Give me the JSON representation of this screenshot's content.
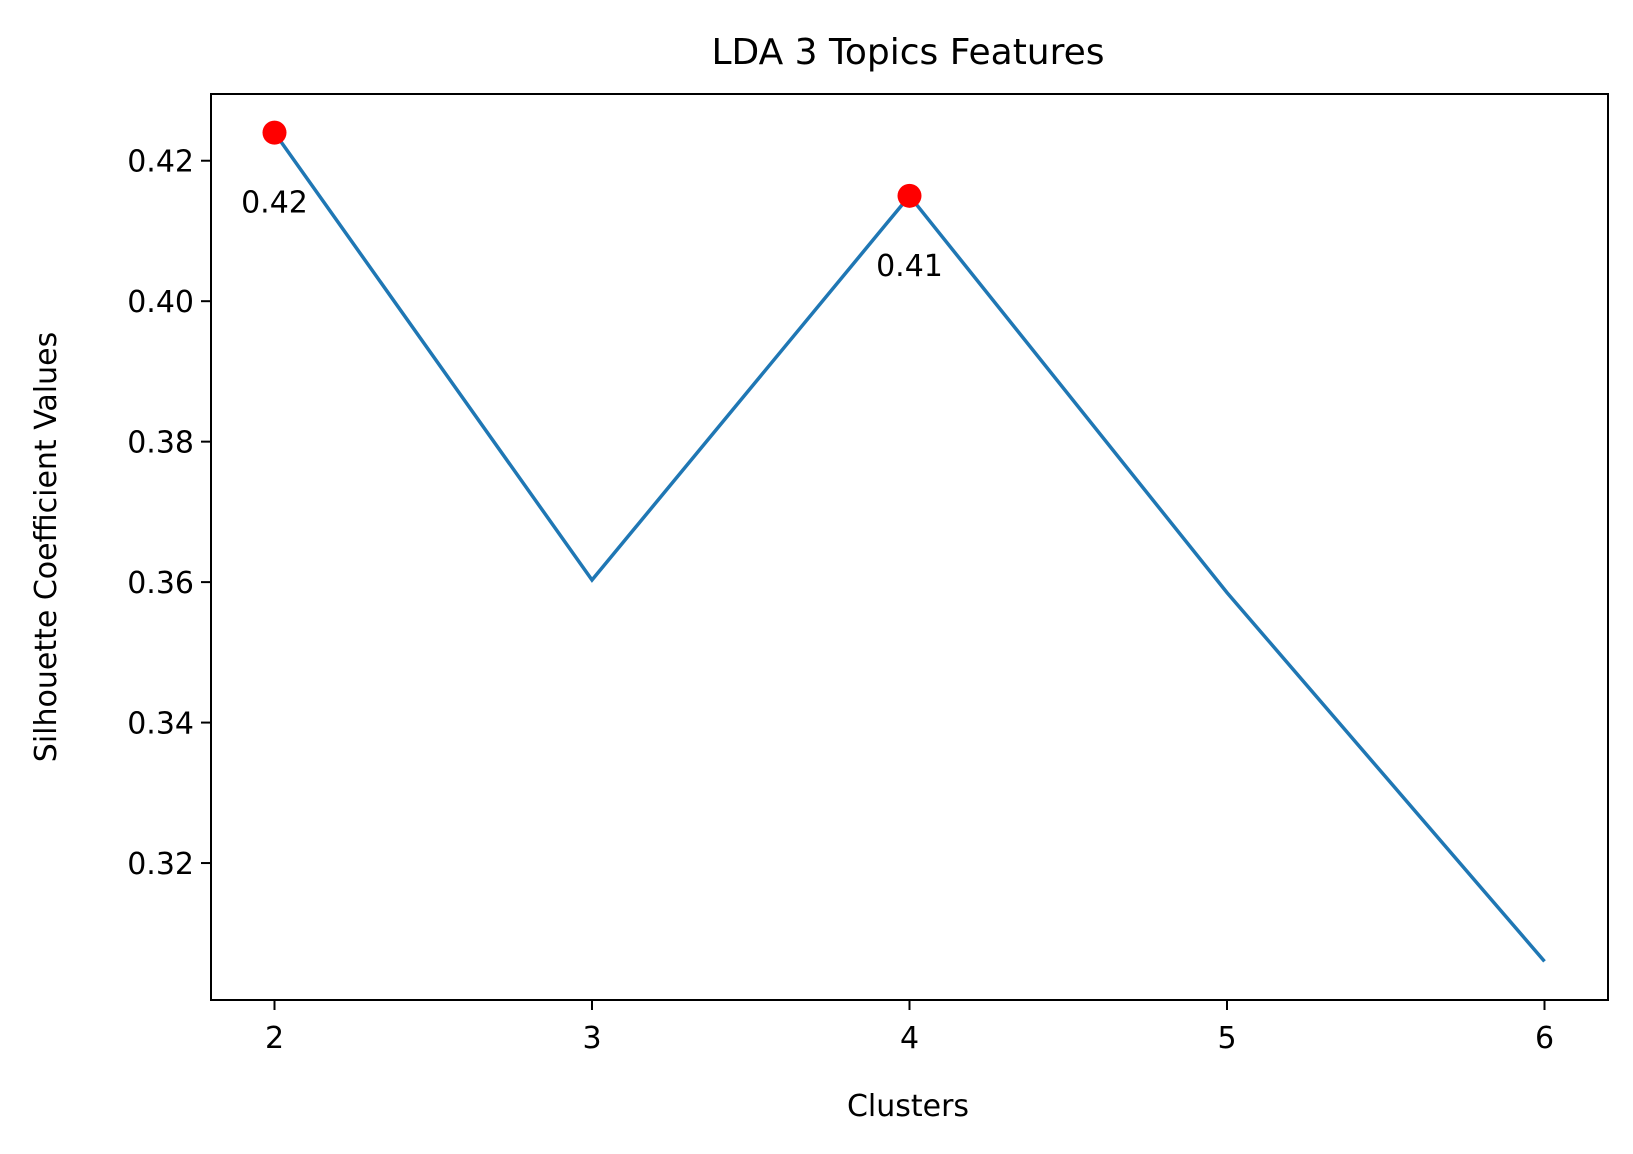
{
  "chart_data": {
    "type": "line",
    "title": "LDA 3 Topics Features",
    "xlabel": "Clusters",
    "ylabel": "Silhouette Coefficient Values",
    "x": [
      2,
      3,
      4,
      5,
      6
    ],
    "series": [
      {
        "values": [
          0.424,
          0.3603,
          0.415,
          0.3585,
          0.306
        ]
      }
    ],
    "highlighted_points": [
      {
        "x": 2,
        "y": 0.424,
        "label": "0.42"
      },
      {
        "x": 4,
        "y": 0.415,
        "label": "0.41"
      }
    ],
    "xlim": [
      1.8,
      6.2
    ],
    "ylim": [
      0.3005,
      0.4295
    ],
    "xticks": [
      2,
      3,
      4,
      5,
      6
    ],
    "xtick_labels": [
      "2",
      "3",
      "4",
      "5",
      "6"
    ],
    "yticks": [
      0.32,
      0.34,
      0.36,
      0.38,
      0.4,
      0.42
    ],
    "ytick_labels": [
      "0.32",
      "0.34",
      "0.36",
      "0.38",
      "0.40",
      "0.42"
    ],
    "grid": false,
    "colors": {
      "line": "#1f77b4",
      "marker": "#ff0000"
    }
  }
}
